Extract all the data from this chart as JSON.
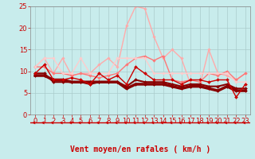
{
  "title": "",
  "xlabel": "Vent moyen/en rafales ( km/h )",
  "ylabel": "",
  "bg_color": "#c8ecec",
  "grid_color": "#aacccc",
  "xlim": [
    -0.5,
    23.5
  ],
  "ylim": [
    0,
    25
  ],
  "yticks": [
    0,
    5,
    10,
    15,
    20,
    25
  ],
  "xticks": [
    0,
    1,
    2,
    3,
    4,
    5,
    6,
    7,
    8,
    9,
    10,
    11,
    12,
    13,
    14,
    15,
    16,
    17,
    18,
    19,
    20,
    21,
    22,
    23
  ],
  "series": [
    {
      "y": [
        9.5,
        11.5,
        8.0,
        8.0,
        8.5,
        8.0,
        7.0,
        9.5,
        8.0,
        9.0,
        7.0,
        11.0,
        9.5,
        8.0,
        8.0,
        8.0,
        7.0,
        8.0,
        8.0,
        7.5,
        8.0,
        8.0,
        4.0,
        7.0
      ],
      "color": "#cc0000",
      "linewidth": 1.0,
      "marker": "D",
      "markersize": 2.0,
      "zorder": 4
    },
    {
      "y": [
        9.5,
        9.5,
        7.5,
        7.5,
        7.5,
        7.5,
        7.0,
        7.5,
        7.5,
        7.5,
        6.5,
        8.0,
        7.5,
        7.5,
        7.5,
        7.0,
        6.5,
        7.0,
        7.0,
        6.5,
        6.5,
        7.0,
        6.0,
        6.0
      ],
      "color": "#880000",
      "linewidth": 1.5,
      "marker": "D",
      "markersize": 2.0,
      "zorder": 3
    },
    {
      "y": [
        9.0,
        9.0,
        8.0,
        8.0,
        7.5,
        7.5,
        7.5,
        7.5,
        7.5,
        7.5,
        6.0,
        7.0,
        7.0,
        7.0,
        7.0,
        6.5,
        6.0,
        6.5,
        6.5,
        6.0,
        5.5,
        6.5,
        5.5,
        5.5
      ],
      "color": "#880000",
      "linewidth": 2.5,
      "marker": "D",
      "markersize": 2.0,
      "zorder": 3
    },
    {
      "y": [
        11.0,
        13.0,
        9.5,
        13.0,
        9.0,
        9.5,
        9.5,
        11.5,
        13.0,
        11.0,
        20.5,
        25.0,
        24.5,
        18.0,
        13.0,
        15.0,
        13.0,
        7.0,
        6.5,
        15.0,
        9.5,
        9.0,
        8.0,
        9.5
      ],
      "color": "#ffaaaa",
      "linewidth": 1.0,
      "marker": "D",
      "markersize": 1.8,
      "zorder": 2
    },
    {
      "y": [
        11.0,
        11.0,
        9.5,
        9.5,
        9.0,
        9.5,
        9.0,
        8.5,
        9.0,
        9.5,
        11.5,
        13.0,
        13.5,
        12.5,
        13.5,
        8.0,
        7.5,
        8.0,
        7.5,
        9.5,
        9.0,
        10.0,
        8.0,
        9.5
      ],
      "color": "#ff7777",
      "linewidth": 1.0,
      "marker": "D",
      "markersize": 1.8,
      "zorder": 2
    },
    {
      "y": [
        11.0,
        13.0,
        13.0,
        9.5,
        9.5,
        13.0,
        9.5,
        9.5,
        9.5,
        13.0,
        13.0,
        13.0,
        13.0,
        9.5,
        9.5,
        9.5,
        9.5,
        9.5,
        9.5,
        9.5,
        9.5,
        9.5,
        7.5,
        7.5
      ],
      "color": "#ffcccc",
      "linewidth": 1.0,
      "marker": "D",
      "markersize": 1.8,
      "zorder": 2
    }
  ],
  "arrow_color": "#cc0000",
  "tick_fontsize": 6,
  "xlabel_fontsize": 7,
  "xlabel_color": "#cc0000"
}
